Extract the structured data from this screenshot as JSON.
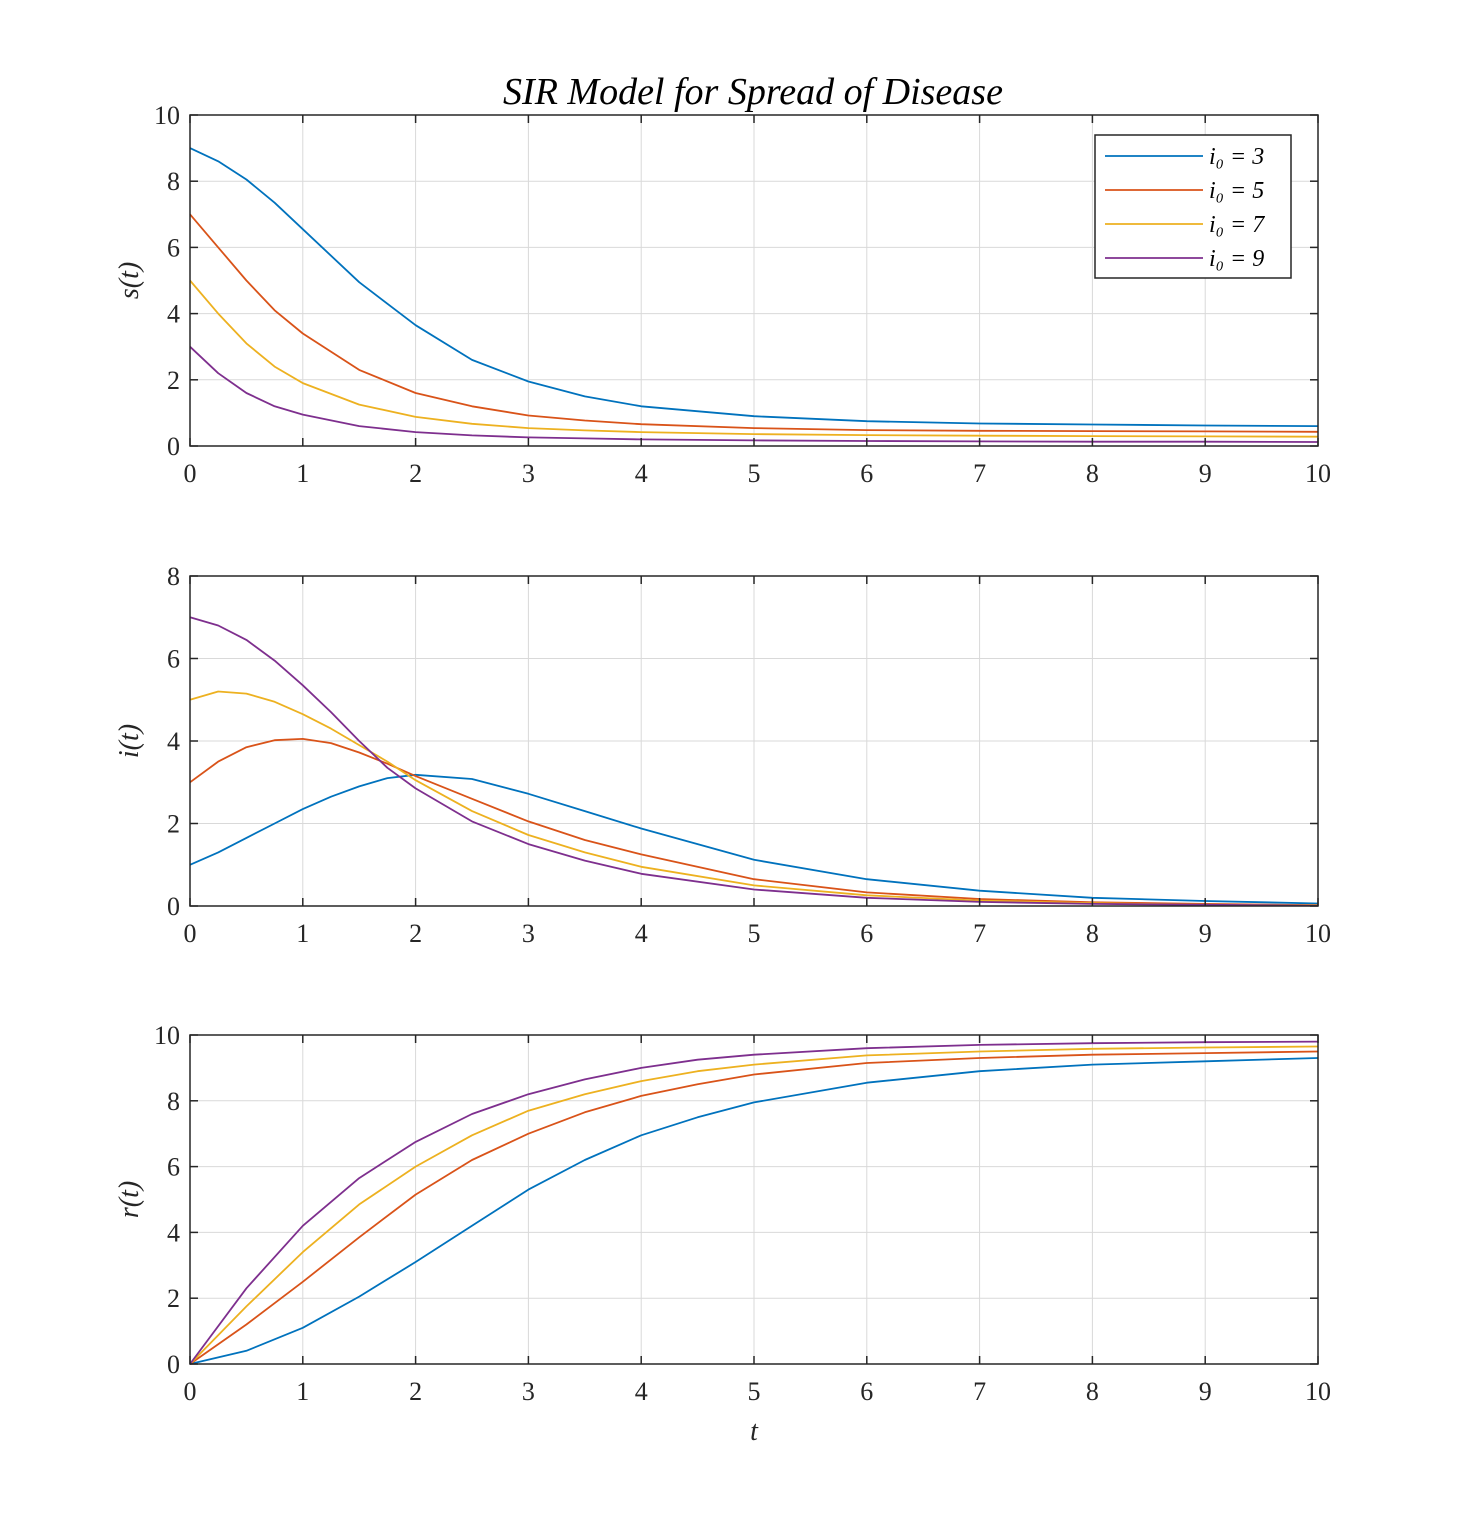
{
  "title": "SIR Model for Spread of Disease",
  "colors": {
    "background": "#ffffff",
    "axes": "#262626",
    "grid": "#d9d9d9",
    "series": [
      "#0072BD",
      "#D95319",
      "#EDB120",
      "#7E2F8E"
    ]
  },
  "legend": {
    "location": "top-right of first subplot",
    "entries": [
      "i₀ = 3",
      "i₀ = 5",
      "i₀ = 7",
      "i₀ = 9"
    ]
  },
  "chart_data": [
    {
      "type": "line",
      "ylabel": "s(t)",
      "xlabel": "",
      "xlim": [
        0,
        10
      ],
      "ylim": [
        0,
        10
      ],
      "xticks": [
        0,
        1,
        2,
        3,
        4,
        5,
        6,
        7,
        8,
        9,
        10
      ],
      "yticks": [
        0,
        2,
        4,
        6,
        8,
        10
      ],
      "grid": true,
      "x": [
        0,
        0.25,
        0.5,
        0.75,
        1,
        1.5,
        2,
        2.5,
        3,
        3.5,
        4,
        5,
        6,
        7,
        8,
        9,
        10
      ],
      "series": [
        {
          "name": "i₀ = 3",
          "values": [
            9.0,
            8.6,
            8.05,
            7.35,
            6.55,
            4.95,
            3.65,
            2.6,
            1.95,
            1.5,
            1.2,
            0.9,
            0.75,
            0.68,
            0.65,
            0.62,
            0.6
          ]
        },
        {
          "name": "i₀ = 5",
          "values": [
            7.0,
            6.0,
            5.0,
            4.1,
            3.4,
            2.3,
            1.6,
            1.2,
            0.92,
            0.77,
            0.66,
            0.54,
            0.48,
            0.46,
            0.45,
            0.44,
            0.43
          ]
        },
        {
          "name": "i₀ = 7",
          "values": [
            5.0,
            4.0,
            3.1,
            2.4,
            1.9,
            1.25,
            0.88,
            0.67,
            0.54,
            0.47,
            0.42,
            0.36,
            0.33,
            0.31,
            0.3,
            0.29,
            0.28
          ]
        },
        {
          "name": "i₀ = 9",
          "values": [
            3.0,
            2.2,
            1.6,
            1.2,
            0.95,
            0.6,
            0.42,
            0.32,
            0.26,
            0.23,
            0.2,
            0.17,
            0.15,
            0.14,
            0.13,
            0.13,
            0.12
          ]
        }
      ]
    },
    {
      "type": "line",
      "ylabel": "i(t)",
      "xlabel": "",
      "xlim": [
        0,
        10
      ],
      "ylim": [
        0,
        8
      ],
      "xticks": [
        0,
        1,
        2,
        3,
        4,
        5,
        6,
        7,
        8,
        9,
        10
      ],
      "yticks": [
        0,
        2,
        4,
        6,
        8
      ],
      "grid": true,
      "x": [
        0,
        0.25,
        0.5,
        0.75,
        1,
        1.25,
        1.5,
        1.75,
        2,
        2.5,
        3,
        3.5,
        4,
        5,
        6,
        7,
        8,
        9,
        10
      ],
      "series": [
        {
          "name": "i₀ = 3",
          "values": [
            1.0,
            1.3,
            1.65,
            2.0,
            2.35,
            2.65,
            2.9,
            3.1,
            3.18,
            3.08,
            2.72,
            2.3,
            1.88,
            1.12,
            0.65,
            0.37,
            0.2,
            0.12,
            0.06
          ]
        },
        {
          "name": "i₀ = 5",
          "values": [
            3.0,
            3.5,
            3.85,
            4.02,
            4.05,
            3.95,
            3.72,
            3.45,
            3.15,
            2.6,
            2.05,
            1.6,
            1.25,
            0.65,
            0.33,
            0.17,
            0.09,
            0.05,
            0.02
          ]
        },
        {
          "name": "i₀ = 7",
          "values": [
            5.0,
            5.2,
            5.15,
            4.95,
            4.65,
            4.3,
            3.9,
            3.5,
            3.05,
            2.3,
            1.72,
            1.3,
            0.95,
            0.5,
            0.26,
            0.13,
            0.07,
            0.03,
            0.02
          ]
        },
        {
          "name": "i₀ = 9",
          "values": [
            7.0,
            6.8,
            6.45,
            5.95,
            5.35,
            4.7,
            4.0,
            3.35,
            2.85,
            2.05,
            1.5,
            1.1,
            0.78,
            0.4,
            0.2,
            0.1,
            0.05,
            0.03,
            0.01
          ]
        }
      ]
    },
    {
      "type": "line",
      "ylabel": "r(t)",
      "xlabel": "t",
      "xlim": [
        0,
        10
      ],
      "ylim": [
        0,
        10
      ],
      "xticks": [
        0,
        1,
        2,
        3,
        4,
        5,
        6,
        7,
        8,
        9,
        10
      ],
      "yticks": [
        0,
        2,
        4,
        6,
        8,
        10
      ],
      "grid": true,
      "x": [
        0,
        0.5,
        1,
        1.5,
        2,
        2.5,
        3,
        3.5,
        4,
        4.5,
        5,
        6,
        7,
        8,
        9,
        10
      ],
      "series": [
        {
          "name": "i₀ = 3",
          "values": [
            0,
            0.4,
            1.1,
            2.05,
            3.1,
            4.2,
            5.3,
            6.2,
            6.95,
            7.5,
            7.95,
            8.55,
            8.9,
            9.1,
            9.2,
            9.3
          ]
        },
        {
          "name": "i₀ = 5",
          "values": [
            0,
            1.2,
            2.5,
            3.85,
            5.15,
            6.2,
            7.0,
            7.65,
            8.15,
            8.5,
            8.8,
            9.15,
            9.3,
            9.4,
            9.45,
            9.5
          ]
        },
        {
          "name": "i₀ = 7",
          "values": [
            0,
            1.75,
            3.4,
            4.85,
            6.0,
            6.95,
            7.7,
            8.2,
            8.6,
            8.9,
            9.1,
            9.38,
            9.5,
            9.58,
            9.62,
            9.65
          ]
        },
        {
          "name": "i₀ = 9",
          "values": [
            0,
            2.3,
            4.2,
            5.65,
            6.75,
            7.6,
            8.2,
            8.65,
            9.0,
            9.25,
            9.4,
            9.6,
            9.7,
            9.75,
            9.78,
            9.8
          ]
        }
      ]
    }
  ]
}
